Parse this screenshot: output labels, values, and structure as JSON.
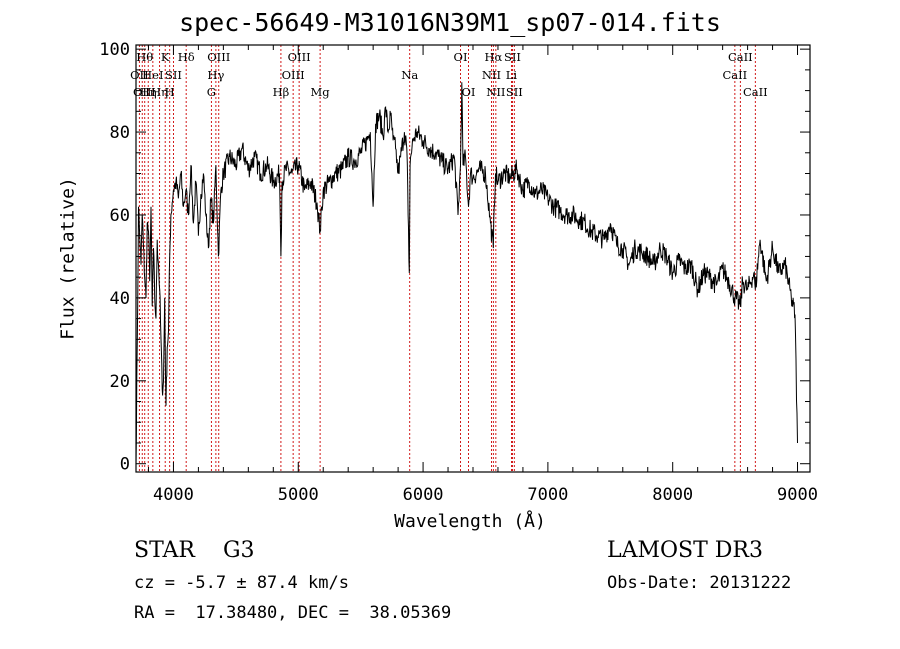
{
  "header": {
    "title": "spec-56649-M31016N39M1_sp07-014.fits"
  },
  "footer": {
    "class_label": "STAR",
    "subclass": "G3",
    "survey": "LAMOST DR3",
    "cz_text": "cz = -5.7 ± 87.4 km/s",
    "obs_date_text": "Obs-Date: 20131222",
    "radec_text": "RA =  17.38480, DEC =  38.05369"
  },
  "chart_data": {
    "type": "line",
    "title": "spec-56649-M31016N39M1_sp07-014.fits",
    "xlabel": "Wavelength (Å)",
    "ylabel": "Flux (relative)",
    "xlim": [
      3700,
      9100
    ],
    "ylim": [
      -2,
      101
    ],
    "xticks": [
      4000,
      5000,
      6000,
      7000,
      8000,
      9000
    ],
    "yticks": [
      0,
      20,
      40,
      60,
      80,
      100
    ],
    "grid": false,
    "line_color": "#000000",
    "marker_color": "#cc0000",
    "series": [
      {
        "values_description_free": true,
        "x": [
          3700,
          3710,
          3720,
          3730,
          3740,
          3750,
          3760,
          3770,
          3780,
          3790,
          3800,
          3810,
          3820,
          3830,
          3840,
          3850,
          3860,
          3870,
          3880,
          3890,
          3900,
          3910,
          3920,
          3930,
          3940,
          3950,
          3960,
          3970,
          3980,
          3990,
          4000,
          4020,
          4040,
          4060,
          4080,
          4100,
          4120,
          4140,
          4160,
          4180,
          4200,
          4220,
          4240,
          4260,
          4280,
          4300,
          4320,
          4340,
          4360,
          4380,
          4400,
          4450,
          4500,
          4550,
          4600,
          4650,
          4700,
          4750,
          4800,
          4850,
          4861,
          4870,
          4900,
          4950,
          5000,
          5050,
          5100,
          5150,
          5175,
          5200,
          5250,
          5300,
          5350,
          5400,
          5450,
          5500,
          5550,
          5577,
          5590,
          5600,
          5620,
          5650,
          5680,
          5700,
          5720,
          5740,
          5760,
          5780,
          5800,
          5820,
          5850,
          5870,
          5880,
          5890,
          5896,
          5900,
          5920,
          5950,
          6000,
          6050,
          6100,
          6150,
          6200,
          6250,
          6280,
          6300,
          6310,
          6320,
          6340,
          6364,
          6380,
          6400,
          6450,
          6500,
          6540,
          6563,
          6570,
          6580,
          6600,
          6650,
          6700,
          6750,
          6800,
          6850,
          6900,
          6950,
          7000,
          7050,
          7100,
          7150,
          7200,
          7250,
          7300,
          7350,
          7400,
          7450,
          7500,
          7550,
          7600,
          7650,
          7700,
          7750,
          7800,
          7850,
          7900,
          7950,
          8000,
          8050,
          8100,
          8150,
          8200,
          8250,
          8300,
          8350,
          8400,
          8450,
          8500,
          8542,
          8560,
          8600,
          8650,
          8662,
          8700,
          8750,
          8800,
          8850,
          8900,
          8950,
          8980,
          9000
        ],
        "y": [
          0,
          28,
          62,
          55,
          48,
          60,
          52,
          45,
          40,
          58,
          56,
          44,
          62,
          38,
          52,
          40,
          35,
          54,
          48,
          42,
          30,
          18,
          20,
          40,
          14,
          28,
          32,
          50,
          60,
          63,
          66,
          68,
          64,
          70,
          62,
          66,
          60,
          72,
          58,
          68,
          55,
          65,
          70,
          60,
          52,
          64,
          58,
          72,
          50,
          66,
          70,
          74,
          72,
          76,
          71,
          74,
          70,
          72,
          68,
          70,
          50,
          68,
          71,
          70,
          72,
          66,
          68,
          63,
          56,
          66,
          68,
          70,
          71,
          74,
          73,
          75,
          78,
          80,
          70,
          62,
          82,
          84,
          79,
          86,
          80,
          84,
          78,
          76,
          70,
          74,
          80,
          76,
          60,
          46,
          72,
          74,
          78,
          80,
          78,
          76,
          75,
          73,
          71,
          74,
          60,
          72,
          92,
          72,
          74,
          62,
          70,
          69,
          71,
          70,
          58,
          52,
          62,
          70,
          68,
          70,
          69,
          71,
          66,
          68,
          65,
          66,
          64,
          62,
          61,
          60,
          60,
          59,
          58,
          56,
          55,
          54,
          58,
          53,
          52,
          48,
          52,
          51,
          50,
          48,
          52,
          50,
          46,
          49,
          47,
          48,
          42,
          46,
          45,
          43,
          47,
          44,
          40,
          38,
          44,
          42,
          46,
          42,
          54,
          44,
          52,
          46,
          48,
          40,
          36,
          5
        ]
      }
    ],
    "line_markers": [
      {
        "wl": 3727,
        "label": "OII",
        "row": 1
      },
      {
        "wl": 3750,
        "label": "OII",
        "row": 2
      },
      {
        "wl": 3770,
        "label": "Hθ",
        "row": 0
      },
      {
        "wl": 3798,
        "label": "Hη",
        "row": 2
      },
      {
        "wl": 3835,
        "label": "HeI",
        "row": 1
      },
      {
        "wl": 3889,
        "label": "Hη",
        "row": 2
      },
      {
        "wl": 3934,
        "label": "K",
        "row": 0
      },
      {
        "wl": 3970,
        "label": "H",
        "row": 2
      },
      {
        "wl": 4000,
        "label": "SII",
        "row": 1
      },
      {
        "wl": 4102,
        "label": "Hδ",
        "row": 0
      },
      {
        "wl": 4304,
        "label": "G",
        "row": 2
      },
      {
        "wl": 4340,
        "label": "Hγ",
        "row": 1
      },
      {
        "wl": 4363,
        "label": "OIII",
        "row": 0
      },
      {
        "wl": 4861,
        "label": "Hβ",
        "row": 2
      },
      {
        "wl": 4959,
        "label": "OIII",
        "row": 1
      },
      {
        "wl": 5007,
        "label": "OIII",
        "row": 0
      },
      {
        "wl": 5175,
        "label": "Mg",
        "row": 2
      },
      {
        "wl": 5893,
        "label": "Na",
        "row": 1
      },
      {
        "wl": 6300,
        "label": "OI",
        "row": 0
      },
      {
        "wl": 6364,
        "label": "OI",
        "row": 2
      },
      {
        "wl": 6548,
        "label": "NII",
        "row": 1
      },
      {
        "wl": 6563,
        "label": "Hα",
        "row": 0
      },
      {
        "wl": 6583,
        "label": "NII",
        "row": 2
      },
      {
        "wl": 6708,
        "label": "Li",
        "row": 1
      },
      {
        "wl": 6716,
        "label": "SII",
        "row": 0
      },
      {
        "wl": 6731,
        "label": "SII",
        "row": 2
      },
      {
        "wl": 8498,
        "label": "CaII",
        "row": 1
      },
      {
        "wl": 8542,
        "label": "CaII",
        "row": 0
      },
      {
        "wl": 8662,
        "label": "CaII",
        "row": 2
      }
    ]
  }
}
